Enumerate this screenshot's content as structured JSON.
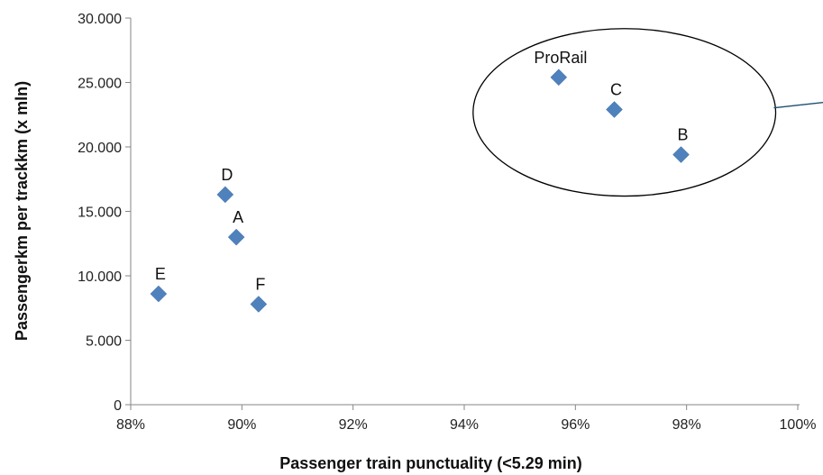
{
  "chart_data": {
    "type": "scatter",
    "xlabel": "Passenger train punctuality (<5.29 min)",
    "ylabel": "Passengerkm per trackkm (x mln)",
    "xlim": [
      0.88,
      1.0
    ],
    "ylim": [
      0,
      30000
    ],
    "x_ticks": [
      0.88,
      0.9,
      0.92,
      0.94,
      0.96,
      0.98,
      1.0
    ],
    "x_tick_labels": [
      "88%",
      "90%",
      "92%",
      "94%",
      "96%",
      "98%",
      "100%"
    ],
    "y_ticks": [
      0,
      5000,
      10000,
      15000,
      20000,
      25000,
      30000
    ],
    "y_tick_labels": [
      "0",
      "5.000",
      "10.000",
      "15.000",
      "20.000",
      "25.000",
      "30.000"
    ],
    "grid": false,
    "marker_color": "#4f81bd",
    "points": [
      {
        "label": "ProRail",
        "x": 0.957,
        "y": 25400
      },
      {
        "label": "C",
        "x": 0.967,
        "y": 22900
      },
      {
        "label": "B",
        "x": 0.979,
        "y": 19400
      },
      {
        "label": "D",
        "x": 0.897,
        "y": 16300
      },
      {
        "label": "A",
        "x": 0.899,
        "y": 13000
      },
      {
        "label": "E",
        "x": 0.885,
        "y": 8600
      },
      {
        "label": "F",
        "x": 0.903,
        "y": 7800
      }
    ],
    "annotations": [
      {
        "type": "ellipse",
        "encloses": [
          "ProRail",
          "C",
          "B"
        ],
        "callout_line": true
      }
    ]
  }
}
